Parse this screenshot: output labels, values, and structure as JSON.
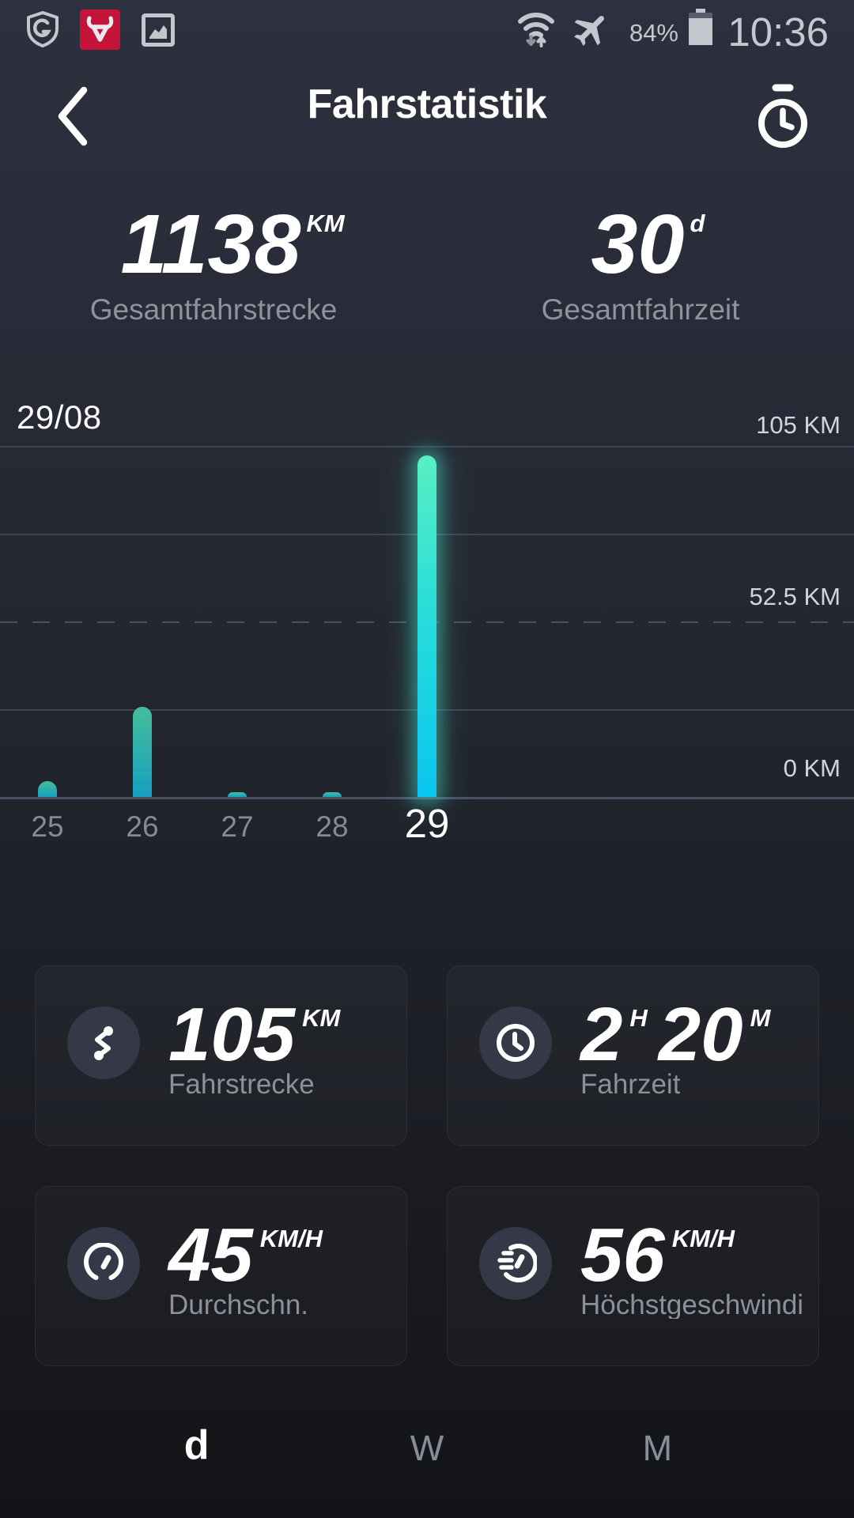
{
  "status_bar": {
    "time": "10:36",
    "battery_percent": "84%",
    "left_icons": [
      "shield-antivirus-icon",
      "bulls-app-icon",
      "screenshot-icon"
    ],
    "right_icons": [
      "wifi-icon",
      "airplane-mode-icon",
      "battery-icon"
    ]
  },
  "header": {
    "title": "Fahrstatistik",
    "back_icon": "chevron-left-icon",
    "timer_icon": "stopwatch-icon"
  },
  "totals": [
    {
      "value": "1138",
      "unit": "KM",
      "label": "Gesamtfahrstrecke"
    },
    {
      "value": "30",
      "unit": "d",
      "label": "Gesamtfahrzeit"
    }
  ],
  "chart_data": {
    "type": "bar",
    "title": "29/08",
    "categories": [
      "25",
      "26",
      "27",
      "28",
      "29"
    ],
    "values": [
      4.7,
      27,
      1.5,
      1.5,
      105
    ],
    "unit": "KM",
    "selected_index": 4,
    "ylim": [
      0,
      105
    ],
    "y_ticks": [
      {
        "value": 105,
        "label": "105 KM",
        "style": "solid"
      },
      {
        "value": 78.75,
        "label": "",
        "style": "solid"
      },
      {
        "value": 52.5,
        "label": "52.5 KM",
        "style": "dashed"
      },
      {
        "value": 26.25,
        "label": "",
        "style": "solid"
      },
      {
        "value": 0,
        "label": "0 KM",
        "style": "baseline"
      }
    ],
    "grid": true,
    "legend": false,
    "colors": {
      "bar_top": "#45bd9c",
      "bar_bottom": "#17a0bf",
      "bar_selected_top": "#57f0c2",
      "bar_selected_mid": "#29ddda",
      "bar_selected_bottom": "#0ac6f0"
    }
  },
  "cards": [
    {
      "icon": "route-icon",
      "parts": [
        {
          "t": "105"
        },
        {
          "s": "KM"
        }
      ],
      "label": "Fahrstrecke"
    },
    {
      "icon": "clock-icon",
      "parts": [
        {
          "t": "2"
        },
        {
          "s": "H"
        },
        {
          "t": "20"
        },
        {
          "s": "M"
        }
      ],
      "label": "Fahrzeit"
    },
    {
      "icon": "gauge-icon",
      "parts": [
        {
          "t": "45"
        },
        {
          "s": "KM/H"
        }
      ],
      "label": "Durchschn."
    },
    {
      "icon": "speed-gauge-icon",
      "parts": [
        {
          "t": "56"
        },
        {
          "s": "KM/H"
        }
      ],
      "label": "Höchstgeschwindi"
    }
  ],
  "tabs": [
    {
      "label": "d",
      "active": true
    },
    {
      "label": "W",
      "active": false
    },
    {
      "label": "M",
      "active": false
    }
  ]
}
